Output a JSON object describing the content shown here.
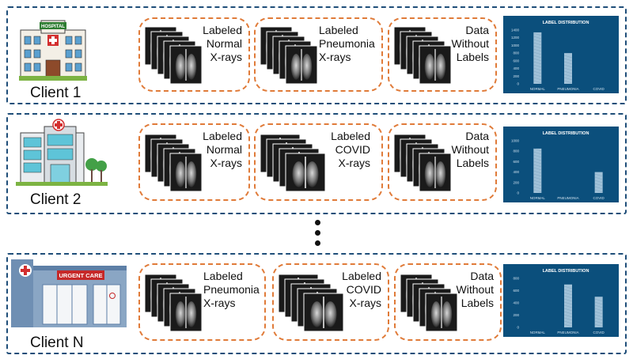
{
  "rows": [
    {
      "client": "Client 1",
      "building": "hospital",
      "building_sign": "HOSPITAL",
      "groups": [
        {
          "label": "Labeled\nNormal\nX-rays",
          "kind": "normal"
        },
        {
          "label": "Labeled\nPneumonia\nX-rays",
          "kind": "pneumonia"
        },
        {
          "label": "Data\nWithout\nLabels",
          "kind": "mixed"
        }
      ],
      "chart": {
        "title": "LABEL DISTRIBUTION",
        "categories": [
          "NORMAL",
          "PNEUMONIA",
          "COVID"
        ],
        "values": [
          1340,
          800,
          0
        ],
        "ylim": [
          0,
          1400
        ],
        "yticks": [
          0,
          200,
          400,
          600,
          800,
          1000,
          1200,
          1400
        ]
      }
    },
    {
      "client": "Client 2",
      "building": "clinic",
      "building_sign": "",
      "groups": [
        {
          "label": "Labeled\nNormal\nX-rays",
          "kind": "normal"
        },
        {
          "label": "Labeled\nCOVID\nX-rays",
          "kind": "covid"
        },
        {
          "label": "Data\nWithout\nLabels",
          "kind": "mixed"
        }
      ],
      "chart": {
        "title": "LABEL DISTRIBUTION",
        "categories": [
          "NORMAL",
          "PNEUMONIA",
          "COVID"
        ],
        "values": [
          850,
          0,
          400
        ],
        "ylim": [
          0,
          1000
        ],
        "yticks": [
          0,
          200,
          400,
          600,
          800,
          1000
        ]
      }
    },
    {
      "client": "Client N",
      "building": "urgent-care",
      "building_sign": "URGENT CARE",
      "groups": [
        {
          "label": "Labeled\nPneumonia\nX-rays",
          "kind": "pneumonia"
        },
        {
          "label": "Labeled\nCOVID\nX-rays",
          "kind": "covid"
        },
        {
          "label": "Data\nWithout\nLabels",
          "kind": "mixed"
        }
      ],
      "chart": {
        "title": "LABEL DISTRIBUTION",
        "categories": [
          "NORMAL",
          "PNEUMONIA",
          "COVID"
        ],
        "values": [
          0,
          700,
          500
        ],
        "ylim": [
          0,
          800
        ],
        "yticks": [
          0,
          200,
          400,
          600,
          800
        ]
      }
    }
  ],
  "chart_data": [
    {
      "type": "bar",
      "title": "LABEL DISTRIBUTION",
      "categories": [
        "NORMAL",
        "PNEUMONIA",
        "COVID"
      ],
      "values": [
        1340,
        800,
        0
      ],
      "ylim": [
        0,
        1400
      ],
      "grid": false
    },
    {
      "type": "bar",
      "title": "LABEL DISTRIBUTION",
      "categories": [
        "NORMAL",
        "PNEUMONIA",
        "COVID"
      ],
      "values": [
        850,
        0,
        400
      ],
      "ylim": [
        0,
        1000
      ],
      "grid": false
    },
    {
      "type": "bar",
      "title": "LABEL DISTRIBUTION",
      "categories": [
        "NORMAL",
        "PNEUMONIA",
        "COVID"
      ],
      "values": [
        0,
        700,
        500
      ],
      "ylim": [
        0,
        800
      ],
      "grid": false
    }
  ],
  "colors": {
    "row_border": "#1f4e79",
    "group_border": "#e07b39",
    "chart_bg": "#0b4f7c",
    "bar_fill": "#a9c7dd"
  }
}
